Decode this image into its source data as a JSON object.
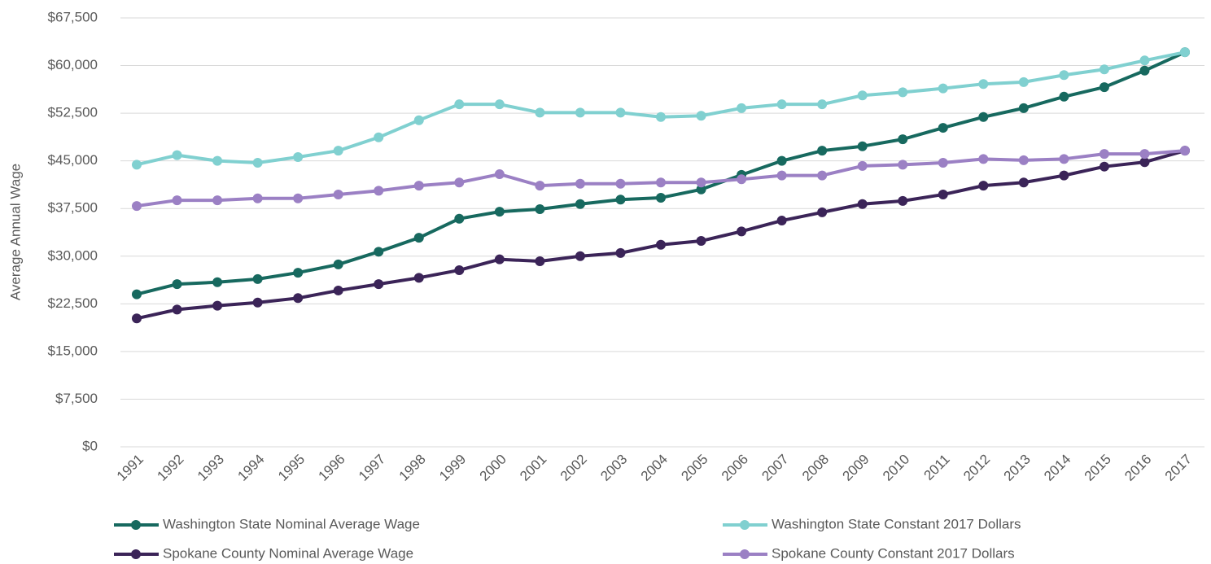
{
  "chart_data": {
    "type": "line",
    "y_label": "Average Annual Wage",
    "categories": [
      "1991",
      "1992",
      "1993",
      "1994",
      "1995",
      "1996",
      "1997",
      "1998",
      "1999",
      "2000",
      "2001",
      "2002",
      "2003",
      "2004",
      "2005",
      "2006",
      "2007",
      "2008",
      "2009",
      "2010",
      "2011",
      "2012",
      "2013",
      "2014",
      "2015",
      "2016",
      "2017"
    ],
    "series": [
      {
        "name": "Washington State Nominal Average Wage",
        "color": "#17695f",
        "values": [
          24000,
          25600,
          25900,
          26400,
          27400,
          28700,
          30700,
          32900,
          35900,
          37000,
          37400,
          38200,
          38900,
          39200,
          40500,
          42800,
          45000,
          46600,
          47300,
          48400,
          50200,
          51900,
          53300,
          55100,
          56600,
          59200,
          62100
        ]
      },
      {
        "name": "Washington State Constant 2017 Dollars",
        "color": "#80d0d0",
        "values": [
          44400,
          45900,
          45000,
          44700,
          45600,
          46600,
          48700,
          51400,
          53900,
          53900,
          52600,
          52600,
          52600,
          51900,
          52100,
          53300,
          53900,
          53900,
          55300,
          55800,
          56400,
          57100,
          57400,
          58500,
          59400,
          60800,
          62100
        ]
      },
      {
        "name": "Spokane County Nominal Average Wage",
        "color": "#3b2458",
        "values": [
          20200,
          21600,
          22200,
          22700,
          23400,
          24600,
          25600,
          26600,
          27800,
          29500,
          29200,
          30000,
          30500,
          31800,
          32400,
          33900,
          35600,
          36900,
          38200,
          38700,
          39700,
          41100,
          41600,
          42700,
          44100,
          44800,
          46600
        ]
      },
      {
        "name": "Spokane County Constant 2017 Dollars",
        "color": "#9b80c4",
        "values": [
          37900,
          38800,
          38800,
          39100,
          39100,
          39700,
          40300,
          41100,
          41600,
          42900,
          41100,
          41400,
          41400,
          41600,
          41600,
          42100,
          42700,
          42700,
          44200,
          44400,
          44700,
          45300,
          45100,
          45300,
          46100,
          46100,
          46600
        ]
      }
    ],
    "ylim": [
      0,
      67500
    ],
    "yticks": [
      {
        "value": 0,
        "label": "$0"
      },
      {
        "value": 7500,
        "label": "$7,500"
      },
      {
        "value": 15000,
        "label": "$15,000"
      },
      {
        "value": 22500,
        "label": "$22,500"
      },
      {
        "value": 30000,
        "label": "$30,000"
      },
      {
        "value": 37500,
        "label": "$37,500"
      },
      {
        "value": 45000,
        "label": "$45,000"
      },
      {
        "value": 52500,
        "label": "$52,500"
      },
      {
        "value": 60000,
        "label": "$60,000"
      },
      {
        "value": 67500,
        "label": "$67,500"
      }
    ],
    "grid": true,
    "legend": "bottom"
  }
}
